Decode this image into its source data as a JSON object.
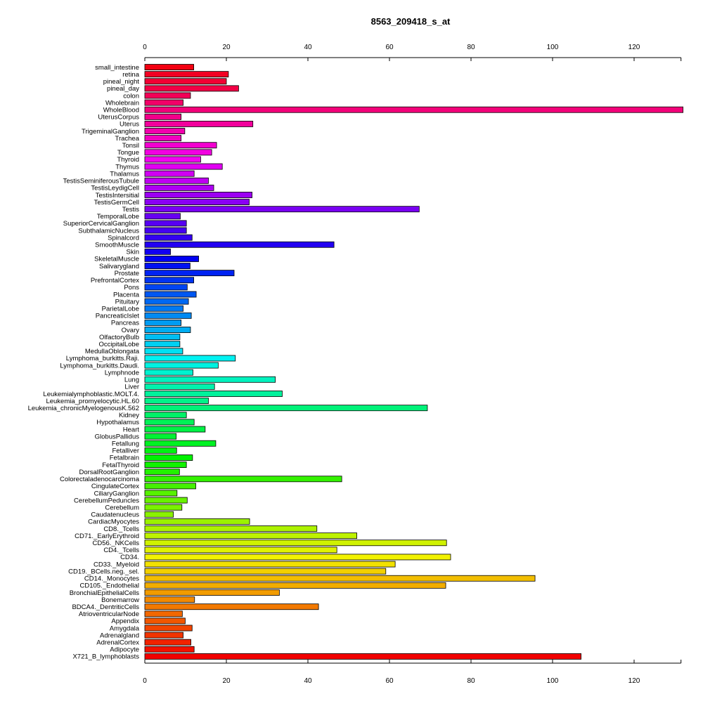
{
  "chart_data": {
    "type": "bar",
    "orientation": "horizontal",
    "title": "8563_209418_s_at",
    "xlabel": "",
    "ylabel": "",
    "xlim": [
      0,
      131.5
    ],
    "x_ticks": [
      0,
      20,
      40,
      60,
      80,
      100,
      120
    ],
    "grid": false,
    "categories": [
      "small_intestine",
      "retina",
      "pineal_night",
      "pineal_day",
      "colon",
      "Wholebrain",
      "WholeBlood",
      "UterusCorpus",
      "Uterus",
      "TrigeminalGanglion",
      "Trachea",
      "Tonsil",
      "Tongue",
      "Thyroid",
      "Thymus",
      "Thalamus",
      "TestisSeminiferousTubule",
      "TestisLeydigCell",
      "TestisIntersitial",
      "TestisGermCell",
      "Testis",
      "TemporalLobe",
      "SuperiorCervicalGanglion",
      "SubthalamicNucleus",
      "Spinalcord",
      "SmoothMuscle",
      "Skin",
      "SkeletalMuscle",
      "Salivarygland",
      "Prostate",
      "PrefrontalCortex",
      "Pons",
      "Placenta",
      "Pituitary",
      "ParietalLobe",
      "PancreaticIslet",
      "Pancreas",
      "Ovary",
      "OlfactoryBulb",
      "OccipitalLobe",
      "MedullaOblongata",
      "Lymphoma_burkitts.Raji.",
      "Lymphoma_burkitts.Daudi.",
      "Lymphnode",
      "Lung",
      "Liver",
      "Leukemialymphoblastic.MOLT.4.",
      "Leukemia_promyelocytic.HL.60",
      "Leukemia_chronicMyelogenousK.562",
      "Kidney",
      "Hypothalamus",
      "Heart",
      "GlobusPallidus",
      "Fetallung",
      "Fetalliver",
      "Fetalbrain",
      "FetalThyroid",
      "DorsalRootGanglion",
      "Colorectaladenocarcinoma",
      "CingulateCortex",
      "CiliaryGanglion",
      "CerebellumPeduncles",
      "Cerebellum",
      "Caudatenucleus",
      "CardiacMyocytes",
      "CD8._Tcells",
      "CD71._EarlyErythroid",
      "CD56._NKCells",
      "CD4._Tcells",
      "CD34.",
      "CD33._Myeloid",
      "CD19._BCells.neg._sel.",
      "CD14._Monocytes",
      "CD105._Endothelial",
      "BronchialEpithelialCells",
      "Bonemarrow",
      "BDCA4._DentriticCells",
      "AtrioventricularNode",
      "Appendix",
      "Amygdala",
      "Adrenalgland",
      "AdrenalCortex",
      "Adipocyte",
      "X721_B_lymphoblasts"
    ],
    "values": [
      12,
      20.5,
      20,
      23,
      11.2,
      9.4,
      132,
      8.9,
      26.5,
      9.8,
      8.9,
      17.6,
      16.4,
      13.7,
      19,
      12.1,
      15.6,
      16.9,
      26.3,
      25.6,
      67.3,
      8.7,
      10.2,
      10.2,
      11.6,
      46.4,
      6.3,
      13.2,
      11.1,
      21.9,
      12,
      10.4,
      12.6,
      10.7,
      9.4,
      11.4,
      8.9,
      11.2,
      8.6,
      8.6,
      9.3,
      22.2,
      18,
      11.8,
      32,
      17.1,
      33.7,
      15.6,
      69.3,
      10.2,
      12.1,
      14.8,
      7.7,
      17.4,
      7.8,
      11.7,
      10.2,
      8.5,
      48.3,
      12.5,
      7.9,
      10.4,
      9.1,
      7,
      25.7,
      42.2,
      52,
      74,
      47.1,
      75,
      61.4,
      59.1,
      95.7,
      73.8,
      33,
      12.2,
      42.6,
      9.2,
      9.9,
      11.6,
      9.4,
      11.3,
      12.1,
      107
    ]
  }
}
